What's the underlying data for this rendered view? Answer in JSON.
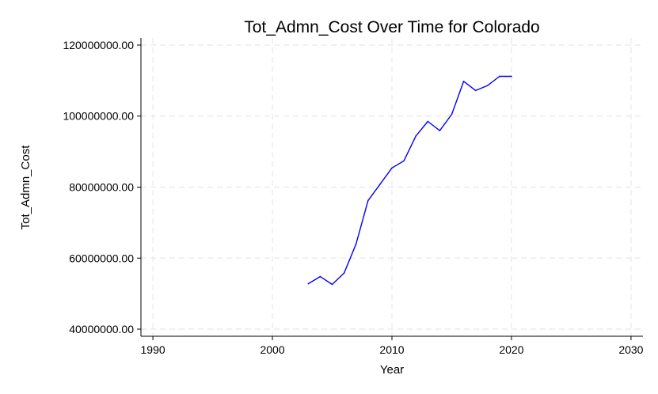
{
  "chart_data": {
    "type": "line",
    "title": "Tot_Admn_Cost Over Time for Colorado",
    "xlabel": "Year",
    "ylabel": "Tot_Admn_Cost",
    "xlim": [
      1989,
      2031
    ],
    "ylim": [
      38000000,
      122000000
    ],
    "xticks": [
      1990,
      2000,
      2010,
      2020,
      2030
    ],
    "xtick_labels": [
      "1990",
      "2000",
      "2010",
      "2020",
      "2030"
    ],
    "yticks": [
      40000000,
      60000000,
      80000000,
      100000000,
      120000000
    ],
    "ytick_labels": [
      "40000000.00",
      "60000000.00",
      "80000000.00",
      "100000000.00",
      "120000000.00"
    ],
    "grid": true,
    "series": [
      {
        "color": "#0000ff",
        "x": [
          2003,
          2004,
          2005,
          2006,
          2007,
          2008,
          2009,
          2010,
          2011,
          2012,
          2013,
          2014,
          2015,
          2016,
          2017,
          2018,
          2019,
          2020
        ],
        "y": [
          52800000,
          54800000,
          52600000,
          55800000,
          64000000,
          76200000,
          80800000,
          85400000,
          87400000,
          94400000,
          98500000,
          95900000,
          100500000,
          109800000,
          107200000,
          108600000,
          111200000,
          111200000
        ]
      }
    ]
  }
}
